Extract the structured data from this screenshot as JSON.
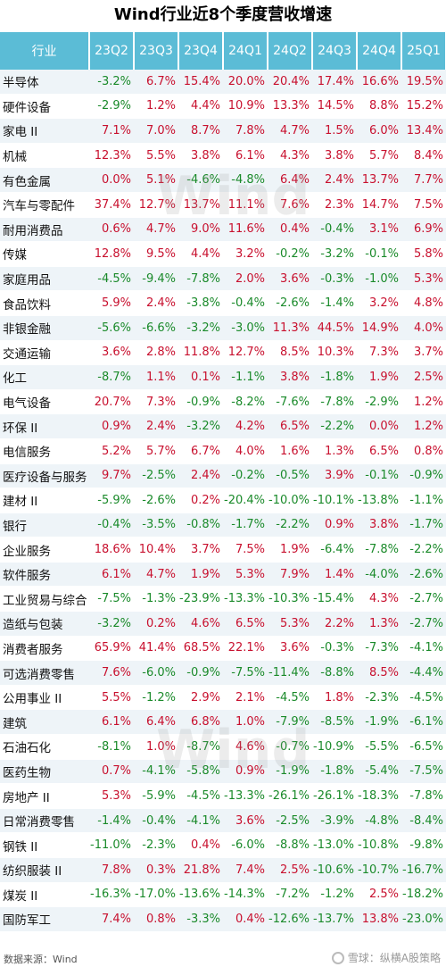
{
  "title": "Wind行业近8个季度营收增速",
  "footer": {
    "source": "数据来源：Wind",
    "brand": "雪球：纵横A股策略"
  },
  "watermark": "Wind",
  "colors": {
    "header": "#5bbcd6",
    "positive": "#c8102e",
    "negative": "#1a8a2a"
  },
  "chart_data": {
    "type": "table",
    "columns": [
      "行业",
      "23Q2",
      "23Q3",
      "23Q4",
      "24Q1",
      "24Q2",
      "24Q3",
      "24Q4",
      "25Q1"
    ],
    "rows": [
      [
        "半导体",
        "-3.2%",
        "6.7%",
        "15.4%",
        "20.0%",
        "20.4%",
        "17.4%",
        "16.6%",
        "19.5%"
      ],
      [
        "硬件设备",
        "-2.9%",
        "1.2%",
        "4.4%",
        "10.9%",
        "13.3%",
        "14.5%",
        "8.8%",
        "15.2%"
      ],
      [
        "家电 II",
        "7.1%",
        "7.0%",
        "8.7%",
        "7.8%",
        "4.7%",
        "1.5%",
        "6.0%",
        "13.4%"
      ],
      [
        "机械",
        "12.3%",
        "5.5%",
        "3.8%",
        "6.1%",
        "4.3%",
        "3.8%",
        "5.7%",
        "8.4%"
      ],
      [
        "有色金属",
        "0.0%",
        "5.1%",
        "-4.6%",
        "-4.8%",
        "6.4%",
        "2.4%",
        "13.7%",
        "7.7%"
      ],
      [
        "汽车与零配件",
        "37.4%",
        "12.7%",
        "13.7%",
        "11.1%",
        "7.6%",
        "2.3%",
        "14.7%",
        "7.5%"
      ],
      [
        "耐用消费品",
        "0.6%",
        "4.7%",
        "9.0%",
        "11.6%",
        "0.4%",
        "-0.4%",
        "3.1%",
        "6.9%"
      ],
      [
        "传媒",
        "12.8%",
        "9.5%",
        "4.4%",
        "3.2%",
        "-0.2%",
        "-3.2%",
        "-0.1%",
        "5.8%"
      ],
      [
        "家庭用品",
        "-4.5%",
        "-9.4%",
        "-7.8%",
        "2.0%",
        "3.6%",
        "-0.3%",
        "-1.0%",
        "5.3%"
      ],
      [
        "食品饮料",
        "5.9%",
        "2.4%",
        "-3.8%",
        "-0.4%",
        "-2.6%",
        "-1.4%",
        "3.2%",
        "4.8%"
      ],
      [
        "非银金融",
        "-5.6%",
        "-6.6%",
        "-3.2%",
        "-3.0%",
        "11.3%",
        "44.5%",
        "14.9%",
        "4.0%"
      ],
      [
        "交通运输",
        "3.6%",
        "2.8%",
        "11.8%",
        "12.7%",
        "8.5%",
        "10.3%",
        "7.3%",
        "3.7%"
      ],
      [
        "化工",
        "-8.7%",
        "1.1%",
        "0.1%",
        "-1.1%",
        "3.8%",
        "-1.8%",
        "1.9%",
        "2.5%"
      ],
      [
        "电气设备",
        "20.7%",
        "7.3%",
        "-0.9%",
        "-8.2%",
        "-7.6%",
        "-7.8%",
        "-2.9%",
        "1.2%"
      ],
      [
        "环保 II",
        "0.9%",
        "2.4%",
        "-3.2%",
        "4.2%",
        "6.5%",
        "-2.2%",
        "0.0%",
        "1.2%"
      ],
      [
        "电信服务",
        "5.2%",
        "5.7%",
        "6.7%",
        "4.0%",
        "1.6%",
        "1.3%",
        "6.5%",
        "0.8%"
      ],
      [
        "医疗设备与服务",
        "9.7%",
        "-2.5%",
        "2.4%",
        "-0.2%",
        "-0.5%",
        "3.9%",
        "-0.1%",
        "-0.9%"
      ],
      [
        "建材 II",
        "-5.9%",
        "-2.6%",
        "0.2%",
        "-20.4%",
        "-10.0%",
        "-10.1%",
        "-13.8%",
        "-1.1%"
      ],
      [
        "银行",
        "-0.4%",
        "-3.5%",
        "-0.8%",
        "-1.7%",
        "-2.2%",
        "0.9%",
        "3.8%",
        "-1.7%"
      ],
      [
        "企业服务",
        "18.6%",
        "10.4%",
        "3.7%",
        "7.5%",
        "1.9%",
        "-6.4%",
        "-7.8%",
        "-2.2%"
      ],
      [
        "软件服务",
        "6.1%",
        "4.7%",
        "1.9%",
        "5.3%",
        "7.9%",
        "1.4%",
        "-4.0%",
        "-2.6%"
      ],
      [
        "工业贸易与综合",
        "-7.5%",
        "-1.3%",
        "-23.9%",
        "-13.3%",
        "-10.3%",
        "-15.4%",
        "4.3%",
        "-2.7%"
      ],
      [
        "造纸与包装",
        "-3.2%",
        "0.2%",
        "4.6%",
        "6.5%",
        "5.3%",
        "2.2%",
        "1.3%",
        "-2.7%"
      ],
      [
        "消费者服务",
        "65.9%",
        "41.4%",
        "68.5%",
        "22.1%",
        "3.6%",
        "-0.3%",
        "-7.3%",
        "-4.1%"
      ],
      [
        "可选消费零售",
        "7.6%",
        "-6.0%",
        "-0.9%",
        "-7.5%",
        "-11.4%",
        "-8.8%",
        "8.5%",
        "-4.4%"
      ],
      [
        "公用事业 II",
        "5.5%",
        "-1.2%",
        "2.9%",
        "2.1%",
        "-4.5%",
        "1.8%",
        "-2.3%",
        "-4.5%"
      ],
      [
        "建筑",
        "6.1%",
        "6.4%",
        "6.8%",
        "1.0%",
        "-7.9%",
        "-8.5%",
        "-1.9%",
        "-6.1%"
      ],
      [
        "石油石化",
        "-8.1%",
        "1.0%",
        "-8.7%",
        "4.6%",
        "-0.7%",
        "-10.9%",
        "-5.5%",
        "-6.5%"
      ],
      [
        "医药生物",
        "0.7%",
        "-4.1%",
        "-5.8%",
        "0.9%",
        "-1.9%",
        "-1.8%",
        "-5.4%",
        "-7.5%"
      ],
      [
        "房地产 II",
        "5.3%",
        "-5.9%",
        "-4.5%",
        "-13.3%",
        "-26.1%",
        "-26.1%",
        "-18.3%",
        "-7.8%"
      ],
      [
        "日常消费零售",
        "-1.4%",
        "-0.4%",
        "-4.1%",
        "3.6%",
        "-2.5%",
        "-3.9%",
        "-4.8%",
        "-8.4%"
      ],
      [
        "钢铁 II",
        "-11.0%",
        "-2.3%",
        "0.4%",
        "-6.0%",
        "-8.8%",
        "-13.0%",
        "-10.8%",
        "-9.8%"
      ],
      [
        "纺织服装 II",
        "7.8%",
        "0.3%",
        "21.8%",
        "7.4%",
        "2.5%",
        "-10.6%",
        "-10.7%",
        "-16.7%"
      ],
      [
        "煤炭 II",
        "-16.3%",
        "-17.0%",
        "-13.6%",
        "-14.3%",
        "-7.2%",
        "-1.2%",
        "2.5%",
        "-18.2%"
      ],
      [
        "国防军工",
        "7.4%",
        "0.8%",
        "-3.3%",
        "0.4%",
        "-12.6%",
        "-13.7%",
        "13.8%",
        "-23.0%"
      ]
    ]
  }
}
